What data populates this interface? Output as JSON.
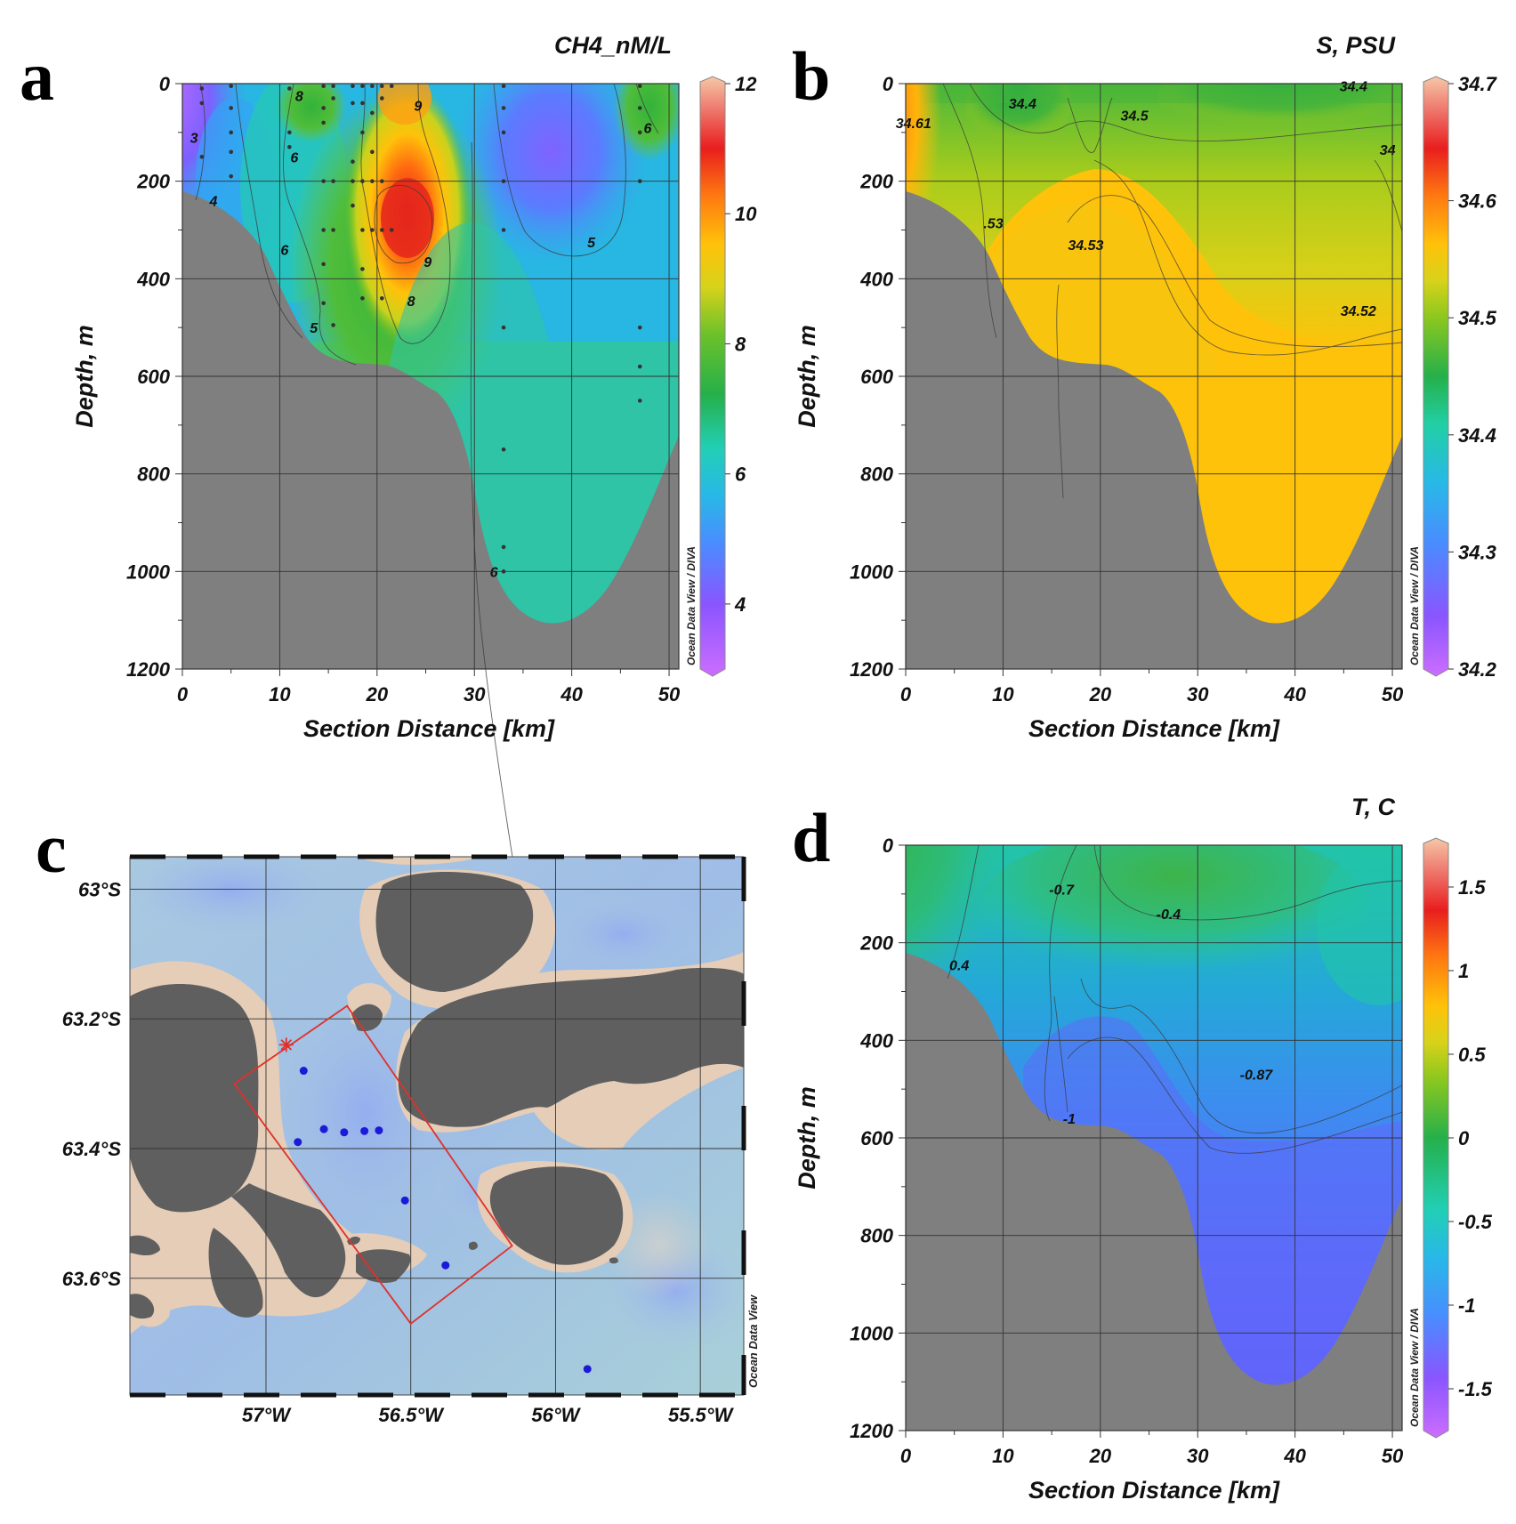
{
  "figure": {
    "panel_letters": [
      "a",
      "b",
      "c",
      "d"
    ],
    "odv_credit": "Ocean Data View / DIVA",
    "map_credit": "Ocean Data View"
  },
  "chart_data": [
    {
      "panel": "a",
      "type": "heatmap",
      "title": "CH4_nM/L",
      "xlabel": "Section Distance [km]",
      "ylabel": "Depth, m",
      "xlim": [
        0,
        51
      ],
      "ylim": [
        1200,
        0
      ],
      "xticks": [
        "0",
        "10",
        "20",
        "30",
        "40",
        "50"
      ],
      "yticks": [
        "0",
        "200",
        "400",
        "600",
        "800",
        "1000",
        "1200"
      ],
      "colorbar": {
        "min": 3,
        "max": 12,
        "ticks": [
          "12",
          "10",
          "8",
          "6",
          "4"
        ]
      },
      "contour_labels": [
        {
          "text": "3",
          "x": 1.2,
          "y": 110
        },
        {
          "text": "4",
          "x": 3.2,
          "y": 240
        },
        {
          "text": "8",
          "x": 12,
          "y": 25
        },
        {
          "text": "6",
          "x": 11.5,
          "y": 150
        },
        {
          "text": "9",
          "x": 24.2,
          "y": 45
        },
        {
          "text": "6",
          "x": 10.5,
          "y": 340
        },
        {
          "text": "9",
          "x": 25.2,
          "y": 365
        },
        {
          "text": "8",
          "x": 23.5,
          "y": 445
        },
        {
          "text": "5",
          "x": 13.5,
          "y": 500
        },
        {
          "text": "5",
          "x": 42,
          "y": 325
        },
        {
          "text": "6",
          "x": 47.8,
          "y": 90
        },
        {
          "text": "6",
          "x": 32,
          "y": 1000
        }
      ],
      "stations": [
        {
          "x": 2,
          "depths": [
            10,
            40,
            150
          ]
        },
        {
          "x": 5,
          "depths": [
            5,
            50,
            100,
            140,
            190
          ]
        },
        {
          "x": 11,
          "depths": [
            10,
            100,
            130
          ]
        },
        {
          "x": 14.5,
          "depths": [
            5,
            50,
            80,
            200,
            300,
            370,
            450
          ]
        },
        {
          "x": 15.5,
          "depths": [
            5,
            30,
            200,
            300,
            495
          ]
        },
        {
          "x": 17.5,
          "depths": [
            5,
            40,
            160,
            200,
            250
          ]
        },
        {
          "x": 18.5,
          "depths": [
            5,
            40,
            100,
            200,
            300,
            380,
            440
          ]
        },
        {
          "x": 19.5,
          "depths": [
            5,
            60,
            140,
            200,
            300
          ]
        },
        {
          "x": 20.5,
          "depths": [
            5,
            30,
            200,
            300,
            440
          ]
        },
        {
          "x": 21.5,
          "depths": [
            5,
            300
          ]
        },
        {
          "x": 33,
          "depths": [
            5,
            50,
            100,
            200,
            300,
            500,
            750,
            950,
            1000
          ]
        },
        {
          "x": 47,
          "depths": [
            5,
            50,
            100,
            200,
            500,
            580,
            650
          ]
        }
      ]
    },
    {
      "panel": "b",
      "type": "heatmap",
      "title": "S, PSU",
      "xlabel": "Section Distance [km]",
      "ylabel": "Depth, m",
      "xlim": [
        0,
        51
      ],
      "ylim": [
        1200,
        0
      ],
      "xticks": [
        "0",
        "10",
        "20",
        "30",
        "40",
        "50"
      ],
      "yticks": [
        "0",
        "200",
        "400",
        "600",
        "800",
        "1000",
        "1200"
      ],
      "colorbar": {
        "min": 34.2,
        "max": 34.7,
        "ticks": [
          "34.7",
          "34.6",
          "34.5",
          "34.4",
          "34.3",
          "34.2"
        ]
      },
      "contour_labels": [
        {
          "text": "34.61",
          "x": 0.8,
          "y": 80
        },
        {
          "text": "34.4",
          "x": 12,
          "y": 40
        },
        {
          "text": "34.5",
          "x": 23.5,
          "y": 65
        },
        {
          "text": "34.4",
          "x": 46,
          "y": 5
        },
        {
          "text": "34",
          "x": 49.5,
          "y": 135
        },
        {
          "text": ".53",
          "x": 9,
          "y": 285
        },
        {
          "text": "34.53",
          "x": 18.5,
          "y": 330
        },
        {
          "text": "34.52",
          "x": 46.5,
          "y": 465
        }
      ]
    },
    {
      "panel": "c",
      "type": "scatter",
      "map": true,
      "lon_ticks": [
        "57°W",
        "56.5°W",
        "56°W",
        "55.5°W"
      ],
      "lat_ticks": [
        "63°S",
        "63.2°S",
        "63.4°S",
        "63.6°S"
      ],
      "lon_range": [
        -57.47,
        -55.35
      ],
      "lat_range": [
        -63.78,
        -62.95
      ],
      "stations": [
        {
          "lon": -56.87,
          "lat": -63.28
        },
        {
          "lon": -56.89,
          "lat": -63.39
        },
        {
          "lon": -56.8,
          "lat": -63.37
        },
        {
          "lon": -56.73,
          "lat": -63.375
        },
        {
          "lon": -56.66,
          "lat": -63.373
        },
        {
          "lon": -56.61,
          "lat": -63.372
        },
        {
          "lon": -56.52,
          "lat": -63.48
        },
        {
          "lon": -56.38,
          "lat": -63.58
        },
        {
          "lon": -55.89,
          "lat": -63.74
        }
      ],
      "star": {
        "lon": -56.93,
        "lat": -63.24
      },
      "section_box": [
        [
          -57.11,
          -63.3
        ],
        [
          -56.72,
          -63.18
        ],
        [
          -56.15,
          -63.55
        ],
        [
          -56.5,
          -63.67
        ]
      ]
    },
    {
      "panel": "d",
      "type": "heatmap",
      "title": "T, C",
      "xlabel": "Section Distance [km]",
      "ylabel": "Depth, m",
      "xlim": [
        0,
        51
      ],
      "ylim": [
        1200,
        0
      ],
      "xticks": [
        "0",
        "10",
        "20",
        "30",
        "40",
        "50"
      ],
      "yticks": [
        "0",
        "200",
        "400",
        "600",
        "800",
        "1000",
        "1200"
      ],
      "colorbar": {
        "min": -1.75,
        "max": 1.75,
        "ticks": [
          "1.5",
          "1",
          "0.5",
          "0",
          "-0.5",
          "-1",
          "-1.5"
        ]
      },
      "contour_labels": [
        {
          "text": "-0.7",
          "x": 16,
          "y": 90
        },
        {
          "text": "-0.4",
          "x": 27,
          "y": 140
        },
        {
          "text": "0.4",
          "x": 5.5,
          "y": 245
        },
        {
          "text": "-0.87",
          "x": 36,
          "y": 470
        },
        {
          "text": "-1",
          "x": 16.8,
          "y": 560
        }
      ]
    }
  ]
}
